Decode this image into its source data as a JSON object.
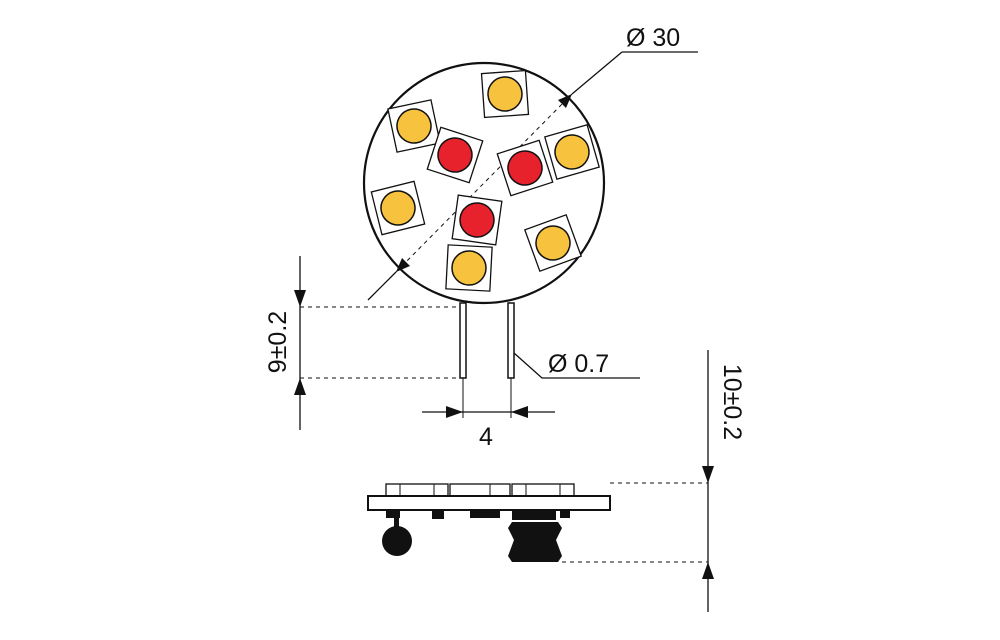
{
  "dimensions": {
    "diameter": "Ø 30",
    "pin_diameter": "Ø 0.7",
    "pin_length": "9±0.2",
    "pin_spacing": "4",
    "height": "10±0.2"
  },
  "leds": {
    "count_warm": 6,
    "count_red": 3,
    "color_warm": "#F7C23E",
    "color_red": "#E8222C"
  },
  "colors": {
    "line": "#111111",
    "board": "#ffffff"
  }
}
